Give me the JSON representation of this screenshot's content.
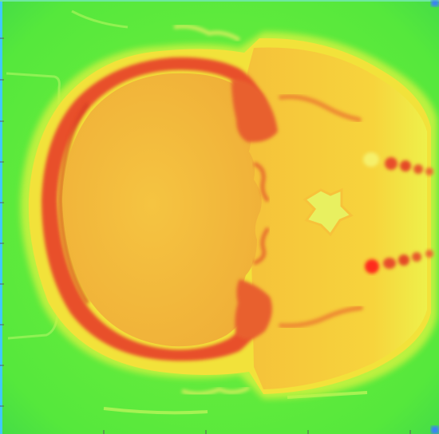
{
  "image": {
    "type": "pseudocolor-axial-scan",
    "subject": "head",
    "colormap": "jet",
    "colors": {
      "background": "#55e83c",
      "background_light": "#7cf040",
      "soft_tissue_outer": "#f2e23a",
      "soft_tissue_mid": "#f7c83a",
      "brain": "#f3b53a",
      "brain_light": "#f5c441",
      "bone": "#e8502b",
      "bone_dark": "#d63a22",
      "bone_highlight": "#ff2a1a",
      "frame_edge": "#3fc8ff",
      "corner_blue": "#3a7bff",
      "tick": "#5a5a5a"
    }
  },
  "axes": {
    "x_ticks": 5,
    "y_ticks": 11
  }
}
